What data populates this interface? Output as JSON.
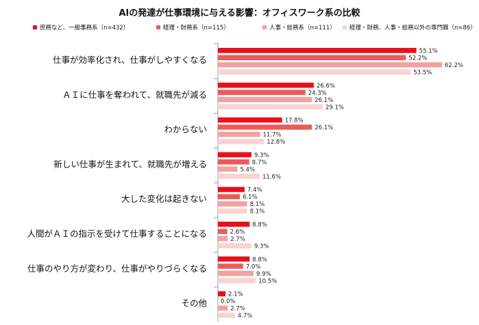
{
  "chart_data": {
    "type": "bar",
    "orientation": "horizontal",
    "title": "AIの発達が仕事環境に与える影響：オフィスワーク系の比較",
    "categories": [
      "仕事が効率化され、仕事がしやすくなる",
      "ＡＩに仕事を奪われて、就職先が減る",
      "わからない",
      "新しい仕事が生まれて、就職先が増える",
      "大した変化は起きない",
      "人間がＡＩの指示を受けて仕事することになる",
      "仕事のやり方が変わり、仕事がやりづらくなる",
      "その他"
    ],
    "series": [
      {
        "name": "庶務など、一般事務系（n=432）",
        "color": "#e8101a",
        "values": [
          55.1,
          26.6,
          17.8,
          9.3,
          7.4,
          8.8,
          8.8,
          2.1
        ]
      },
      {
        "name": "経理・財務系（n=115）",
        "color": "#ee5a5a",
        "values": [
          52.2,
          24.3,
          26.1,
          8.7,
          6.1,
          2.6,
          7.0,
          0.0
        ]
      },
      {
        "name": "人事・総務系（n=111）",
        "color": "#f3a0a0",
        "values": [
          62.2,
          26.1,
          11.7,
          5.4,
          8.1,
          2.7,
          9.9,
          2.7
        ]
      },
      {
        "name": "経理・財務、人事・総務以外の専門職（n=86）",
        "color": "#f9d2d2",
        "values": [
          53.5,
          29.1,
          12.8,
          11.6,
          8.1,
          9.3,
          10.5,
          4.7
        ]
      }
    ],
    "value_suffix": "%",
    "grid": false,
    "legend_position": "top"
  }
}
